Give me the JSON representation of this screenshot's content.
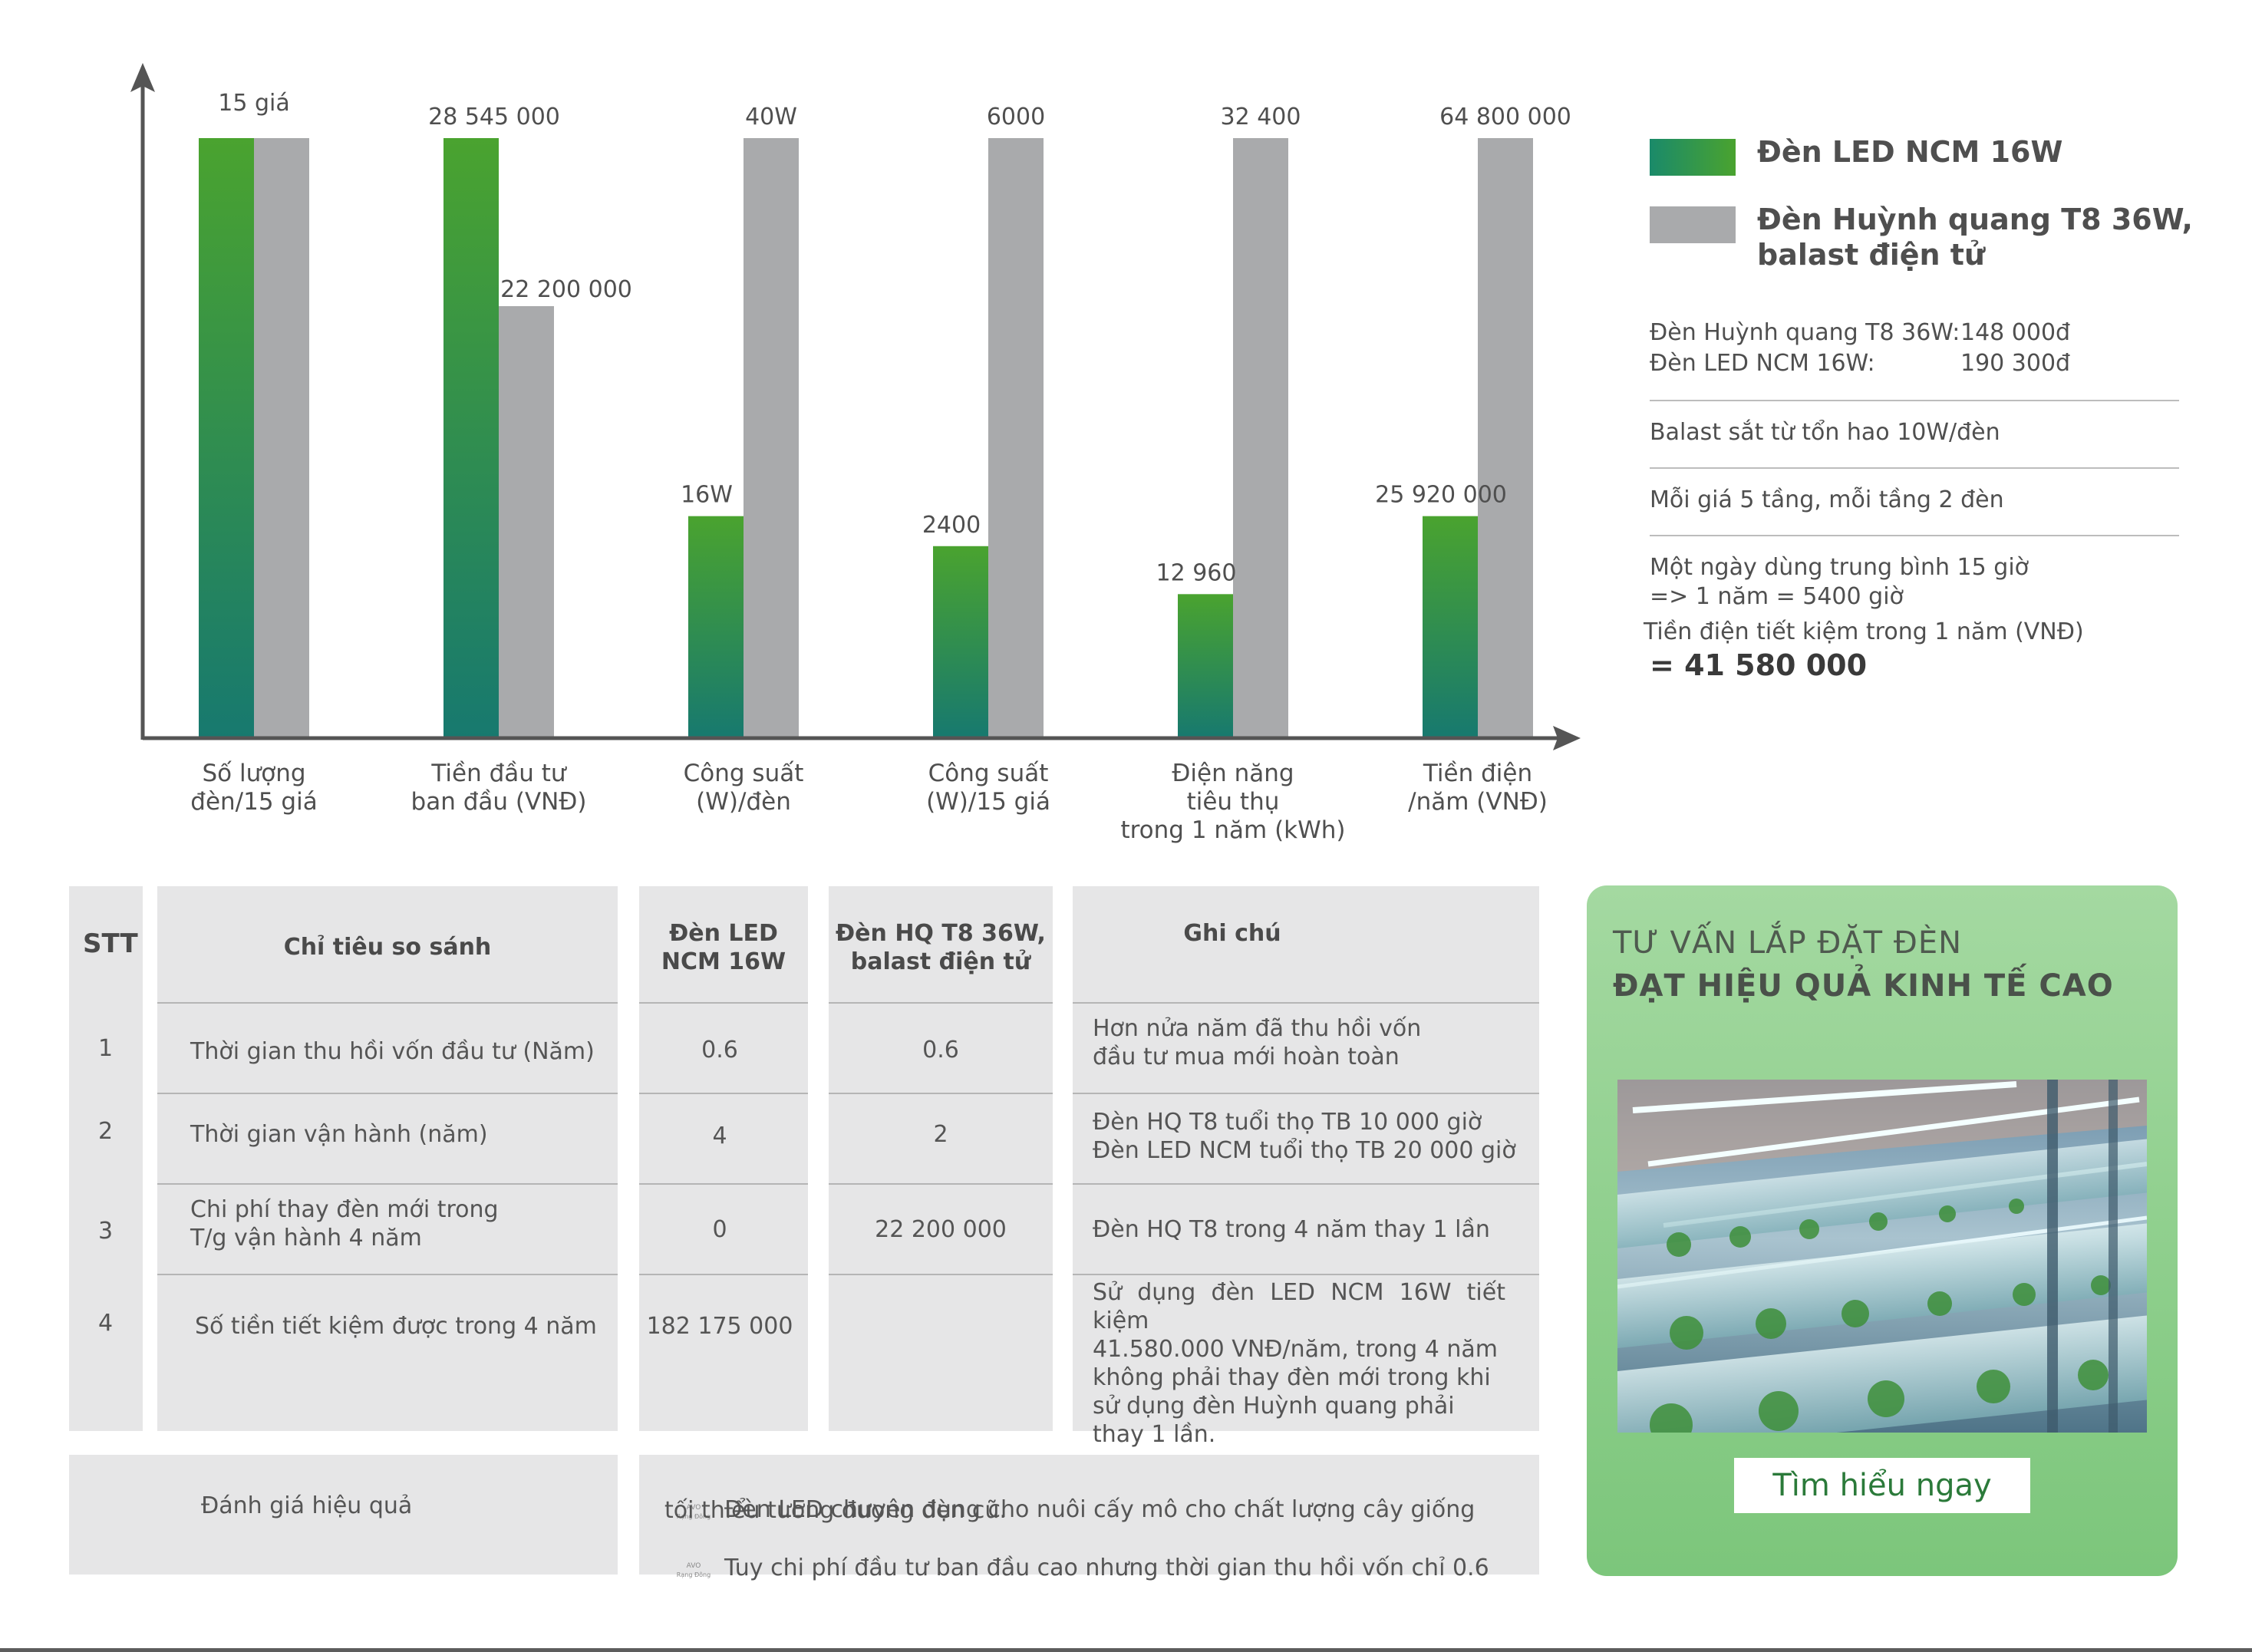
{
  "chart_data": {
    "type": "bar",
    "normalized": true,
    "categories": [
      "Số lượng\nđèn/15 giá",
      "Tiền đầu tư\nban đầu (VNĐ)",
      "Công suất\n(W)/đèn",
      "Công suất\n(W)/15 giá",
      "Điện năng\ntiêu thụ\ntrong 1 năm (kWh)",
      "Tiền điện\n/năm (VNĐ)"
    ],
    "series": [
      {
        "name": "Đèn LED NCM 16W",
        "color": "#3f9b35",
        "values": [
          15,
          28545000,
          16,
          2400,
          12960,
          25920000
        ],
        "relative_heights": [
          1.0,
          1.0,
          0.37,
          0.32,
          0.24,
          0.37
        ],
        "labels": [
          "15 giá",
          "28 545 000",
          "16W",
          "2400",
          "12 960",
          "25 920 000"
        ]
      },
      {
        "name": "Đèn Huỳnh quang T8 36W,\nbalast điện tử",
        "color": "#a9aaac",
        "values": [
          15,
          22200000,
          40,
          6000,
          32400,
          64800000
        ],
        "relative_heights": [
          1.0,
          0.72,
          1.0,
          1.0,
          1.0,
          1.0
        ],
        "labels": [
          "",
          "22 200 000",
          "40W",
          "6000",
          "32 400",
          "64 800 000"
        ]
      }
    ],
    "axes": {
      "y_ticks": false,
      "grid": false,
      "arrows": true
    },
    "legend": "right"
  },
  "notes": {
    "prices": [
      {
        "label": "Đèn Huỳnh quang T8 36W:",
        "value": "148 000đ"
      },
      {
        "label": "Đèn LED NCM 16W:",
        "value": "190 300đ"
      }
    ],
    "ballast": "Balast sắt từ tổn hao 10W/đèn",
    "shelves": "Mỗi giá 5 tầng, mỗi tầng 2 đèn",
    "usage": "Một ngày dùng trung bình 15 giờ\n=> 1 năm = 5400 giờ",
    "saving_label": "Tiền điện tiết kiệm trong 1 năm (VNĐ)",
    "saving_value": "= 41 580 000"
  },
  "table": {
    "headers": {
      "stt": "STT",
      "criteria": "Chỉ tiêu so sánh",
      "led": "Đèn LED\nNCM 16W",
      "hq": "Đèn HQ T8 36W,\nbalast điện tử",
      "note": "Ghi chú"
    },
    "rows": [
      {
        "stt": "1",
        "criteria": "Thời gian thu hồi vốn đầu tư (Năm)",
        "led": "0.6",
        "hq": "0.6",
        "note": "Hơn nửa năm đã thu hồi vốn\nđầu tư mua mới hoàn toàn"
      },
      {
        "stt": "2",
        "criteria": "Thời gian vận hành (năm)",
        "led": "4",
        "hq": "2",
        "note": "Đèn HQ T8 tuổi thọ TB 10 000 giờ\nĐèn LED NCM tuổi thọ TB 20 000 giờ"
      },
      {
        "stt": "3",
        "criteria": "Chi phí thay đèn mới trong\nT/g vận hành 4 năm",
        "led": "0",
        "hq": "22 200 000",
        "note": "Đèn HQ T8 trong 4 năm thay 1 lần"
      },
      {
        "stt": "4",
        "criteria": "Số tiền tiết kiệm được trong 4 năm",
        "led": "182 175 000",
        "hq": "",
        "note": "Sử dụng đèn LED NCM 16W tiết kiệm\n41.580.000 VNĐ/năm, trong 4 năm\nkhông phải thay đèn mới trong khi\nsử dụng đèn Huỳnh quang phải\nthay 1 lần."
      }
    ],
    "evaluation_label": "Đánh giá hiệu quả",
    "evaluation_lines": [
      "Đèn LED chuyên dụng cho nuôi cấy mô cho chất lượng cây giống",
      "tối thiểu tương đương đèn cũ.",
      "Tuy chi phí đầu tư ban đầu cao nhưng thời gian thu hồi vốn chỉ 0.6"
    ]
  },
  "cta": {
    "line1": "TƯ VẤN LẮP ĐẶT ĐÈN",
    "line2": "ĐẠT HIỆU QUẢ KINH TẾ CAO",
    "button": "Tìm hiểu ngay"
  },
  "colors": {
    "green_top": "#4aa32f",
    "green_bottom": "#1a7f6e",
    "gray": "#a9aaac",
    "cta_bg": "#8fcf8c"
  }
}
